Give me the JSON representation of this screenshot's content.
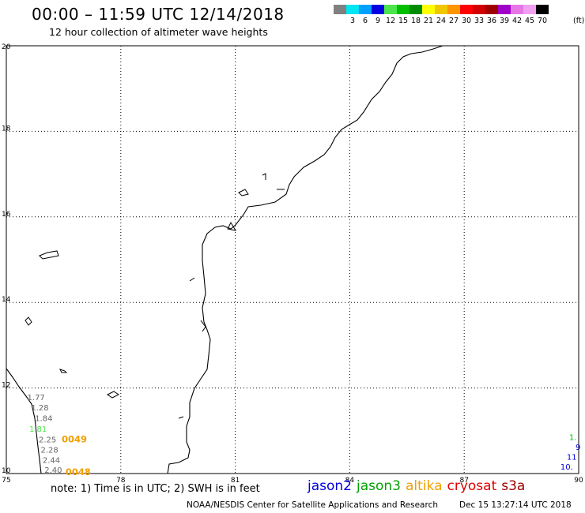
{
  "header": {
    "title": "00:00 – 11:59 UTC 12/14/2018",
    "subtitle": "12 hour collection of altimeter wave heights"
  },
  "legend": {
    "colors": [
      "#808080",
      "#00e6f0",
      "#00a0ff",
      "#0000e0",
      "#4ce64c",
      "#00c000",
      "#008c00",
      "#ffff00",
      "#f0c800",
      "#ff9600",
      "#ff0000",
      "#d20000",
      "#a00000",
      "#a000c8",
      "#e678e6",
      "#f0a0f0",
      "#000000"
    ],
    "ticks": [
      "3",
      "6",
      "9",
      "12",
      "15",
      "18",
      "21",
      "24",
      "27",
      "30",
      "33",
      "36",
      "39",
      "42",
      "45",
      "70"
    ],
    "unit": "(ft)"
  },
  "map": {
    "lon_labels": [
      "75",
      "78",
      "81",
      "84",
      "87",
      "90"
    ],
    "lat_labels": [
      "20",
      "18",
      "16",
      "14",
      "12",
      "10"
    ],
    "swh_labels": [
      {
        "text": "1.77",
        "color": "#666666",
        "lon": 75.55,
        "lat": 11.72
      },
      {
        "text": "1.28",
        "color": "#666666",
        "lon": 75.65,
        "lat": 11.48
      },
      {
        "text": "1.84",
        "color": "#666666",
        "lon": 75.75,
        "lat": 11.23
      },
      {
        "text": "1.81",
        "color": "#4ce64c",
        "lon": 75.6,
        "lat": 10.98
      },
      {
        "text": "2.25",
        "color": "#666666",
        "lon": 75.85,
        "lat": 10.73
      },
      {
        "text": "2.28",
        "color": "#666666",
        "lon": 75.9,
        "lat": 10.49
      },
      {
        "text": "2.44",
        "color": "#666666",
        "lon": 75.95,
        "lat": 10.25
      },
      {
        "text": "2.40",
        "color": "#666666",
        "lon": 76.0,
        "lat": 10.02
      },
      {
        "text": "1.",
        "color": "#00c000",
        "lon": 89.95,
        "lat": 10.78
      },
      {
        "text": "9",
        "color": "#0000e0",
        "lon": 90.05,
        "lat": 10.55
      },
      {
        "text": "11",
        "color": "#0000e0",
        "lon": 89.95,
        "lat": 10.32
      },
      {
        "text": "10.",
        "color": "#0000e0",
        "lon": 89.85,
        "lat": 10.09
      }
    ],
    "track_labels": [
      {
        "text": "0049",
        "color": "#f0a000",
        "lon": 76.45,
        "lat": 10.73
      },
      {
        "text": "0048",
        "color": "#f0a000",
        "lon": 76.55,
        "lat": 9.96
      }
    ]
  },
  "footer": {
    "note": "note: 1) Time is in UTC; 2) SWH is in feet",
    "satellites": [
      {
        "name": "jason2",
        "color": "#0000e0"
      },
      {
        "name": "jason3",
        "color": "#00a000"
      },
      {
        "name": "altika",
        "color": "#f0a000"
      },
      {
        "name": "cryosat",
        "color": "#e00000"
      },
      {
        "name": "s3a",
        "color": "#a00000"
      }
    ],
    "credit": "NOAA/NESDIS Center for Satellite Applications and Research",
    "timestamp": "Dec 15 13:27:14 UTC 2018"
  }
}
